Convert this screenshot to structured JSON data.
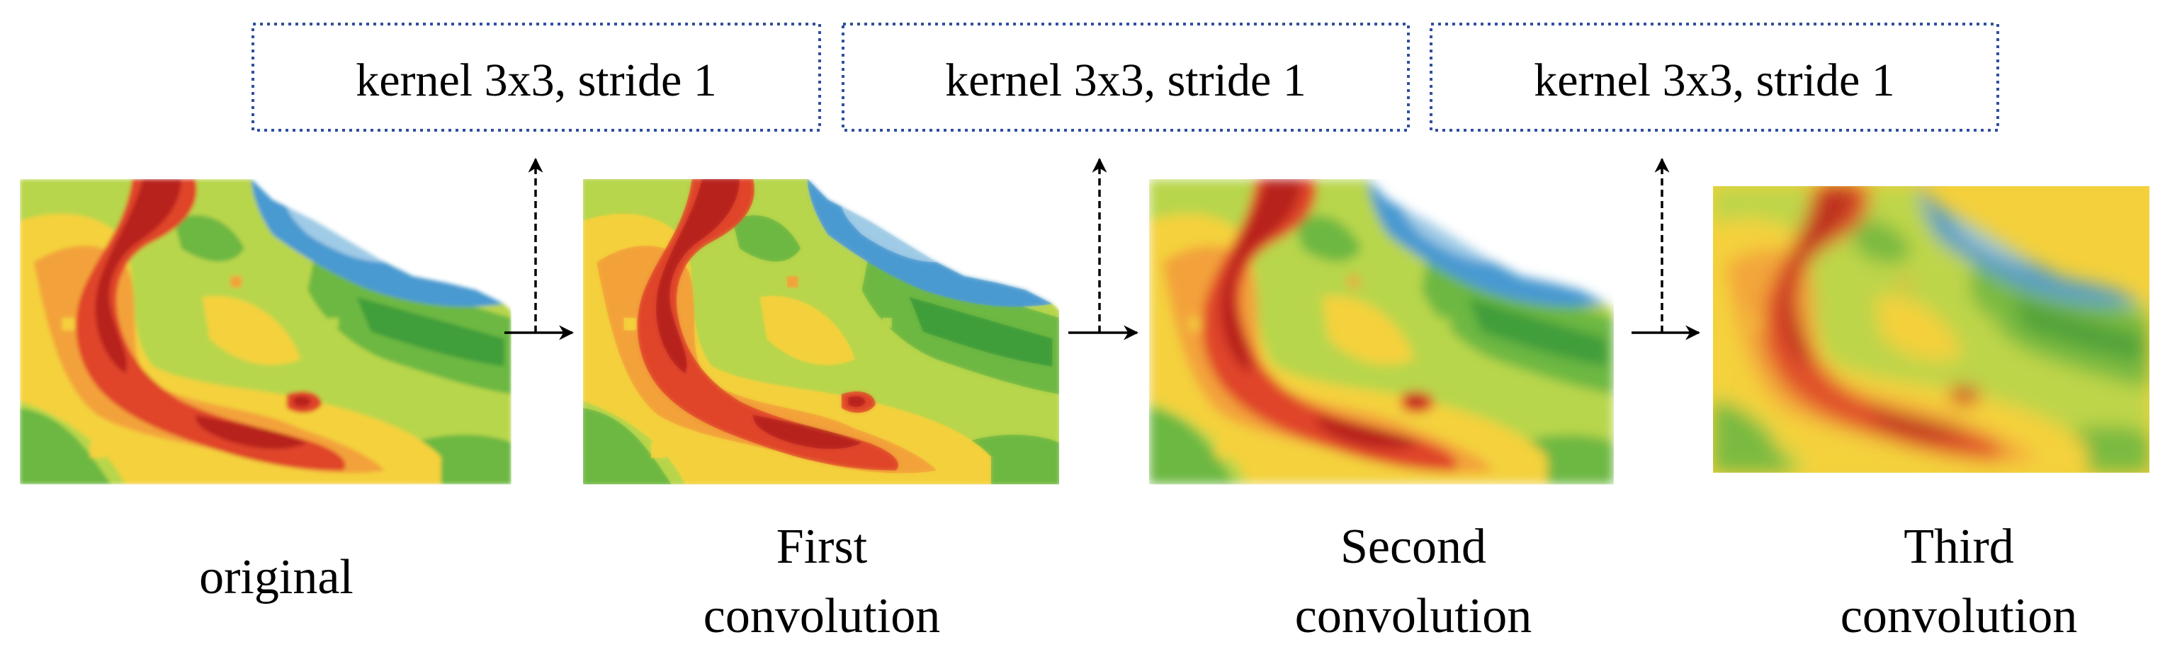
{
  "kernels": [
    {
      "label": "kernel 3x3, stride 1"
    },
    {
      "label": "kernel 3x3, stride 1"
    },
    {
      "label": "kernel 3x3, stride 1"
    }
  ],
  "panels": [
    {
      "caption_lines": [
        "original"
      ]
    },
    {
      "caption_lines": [
        "First",
        "convolution"
      ]
    },
    {
      "caption_lines": [
        "Second",
        "convolution"
      ]
    },
    {
      "caption_lines": [
        "Third",
        "convolution"
      ]
    }
  ],
  "colors": {
    "box_border": "#2f4f9f",
    "arrow": "#000000",
    "map_green_light": "#b8d64c",
    "map_green": "#6db843",
    "map_green_dark": "#3f9e3a",
    "map_yellow": "#f4d13c",
    "map_orange": "#f3a23a",
    "map_red": "#e0452a",
    "map_red_dark": "#b8231f",
    "map_blue": "#4a9ad1",
    "map_blue_light": "#9fcbe6"
  }
}
